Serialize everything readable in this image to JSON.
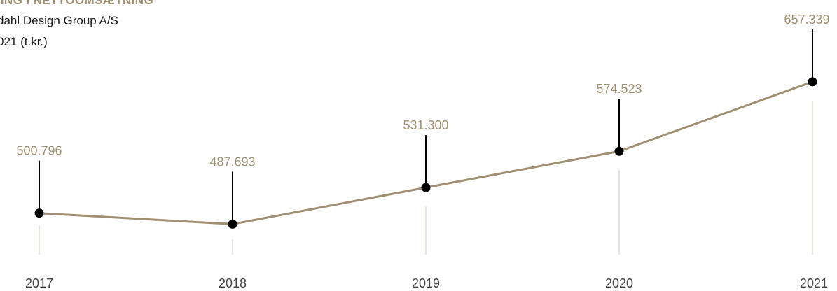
{
  "header": {
    "title": "LING I NETTOOMSÆTNING",
    "company": "dahl Design Group A/S",
    "period": "021 (t.kr.)"
  },
  "colors": {
    "accent": "#a08f70",
    "line": "#a08f70",
    "marker": "#000000",
    "guide": "#cfc6b6",
    "text": "#1a1a1a"
  },
  "chart_data": {
    "type": "line",
    "categories": [
      "2017",
      "2018",
      "2019",
      "2020",
      "2021"
    ],
    "values": [
      500796,
      487693,
      531300,
      574523,
      657339
    ],
    "data_labels": [
      "500.796",
      "487.693",
      "531.300",
      "574.523",
      "657.339"
    ],
    "ylim": [
      460000,
      700000
    ],
    "grid": false,
    "legend": "none"
  }
}
